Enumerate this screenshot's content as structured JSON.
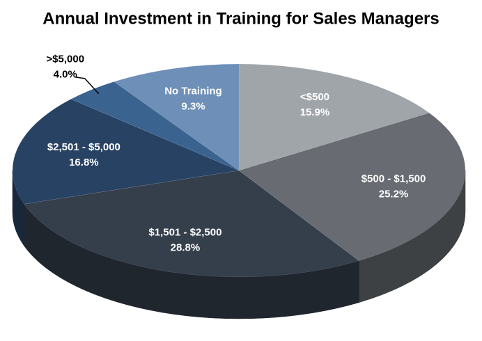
{
  "chart_data": {
    "type": "pie",
    "title": "Annual Investment in Training for Sales Managers",
    "categories": [
      "<$500",
      "$500 - $1,500",
      "$1,501 - $2,500",
      "$2,501 - $5,000",
      ">$5,000",
      "No Training"
    ],
    "values": [
      15.9,
      25.2,
      28.8,
      16.8,
      4.0,
      9.3
    ],
    "value_labels": [
      "15.9%",
      "25.2%",
      "28.8%",
      "16.8%",
      "4.0%",
      "9.3%"
    ],
    "colors": [
      "#a0a5aa",
      "#686c72",
      "#353f4c",
      "#274263",
      "#3a6390",
      "#6d8fb8"
    ]
  }
}
